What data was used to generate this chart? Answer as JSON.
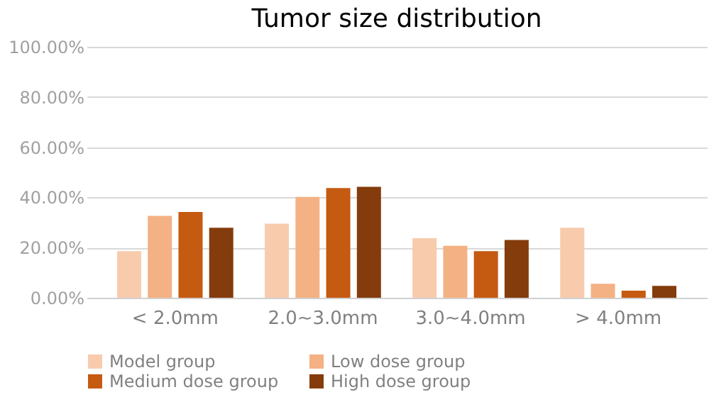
{
  "chart_data": {
    "type": "bar",
    "title": "Tumor size distribution",
    "categories": [
      "< 2.0mm",
      "2.0~3.0mm",
      "3.0~4.0mm",
      "> 4.0mm"
    ],
    "series": [
      {
        "name": "Model group",
        "color": "#f8cbad",
        "values": [
          18.6,
          29.5,
          23.7,
          27.9
        ]
      },
      {
        "name": "Low dose group",
        "color": "#f4b183",
        "values": [
          32.6,
          40.2,
          20.7,
          5.6
        ]
      },
      {
        "name": "Medium dose group",
        "color": "#c55a11",
        "values": [
          34.2,
          43.7,
          18.6,
          2.8
        ]
      },
      {
        "name": "High dose group",
        "color": "#843c0c",
        "values": [
          27.9,
          44.2,
          23.0,
          4.7
        ]
      }
    ],
    "ylim": [
      0,
      100
    ],
    "yticks": [
      {
        "value": 0,
        "label": "0.00%"
      },
      {
        "value": 20,
        "label": "20.00%"
      },
      {
        "value": 40,
        "label": "40.00%"
      },
      {
        "value": 60,
        "label": "60.00%"
      },
      {
        "value": 80,
        "label": "80.00%"
      },
      {
        "value": 100,
        "label": "100.00%"
      }
    ],
    "grid": "y",
    "legend": "bottom"
  }
}
